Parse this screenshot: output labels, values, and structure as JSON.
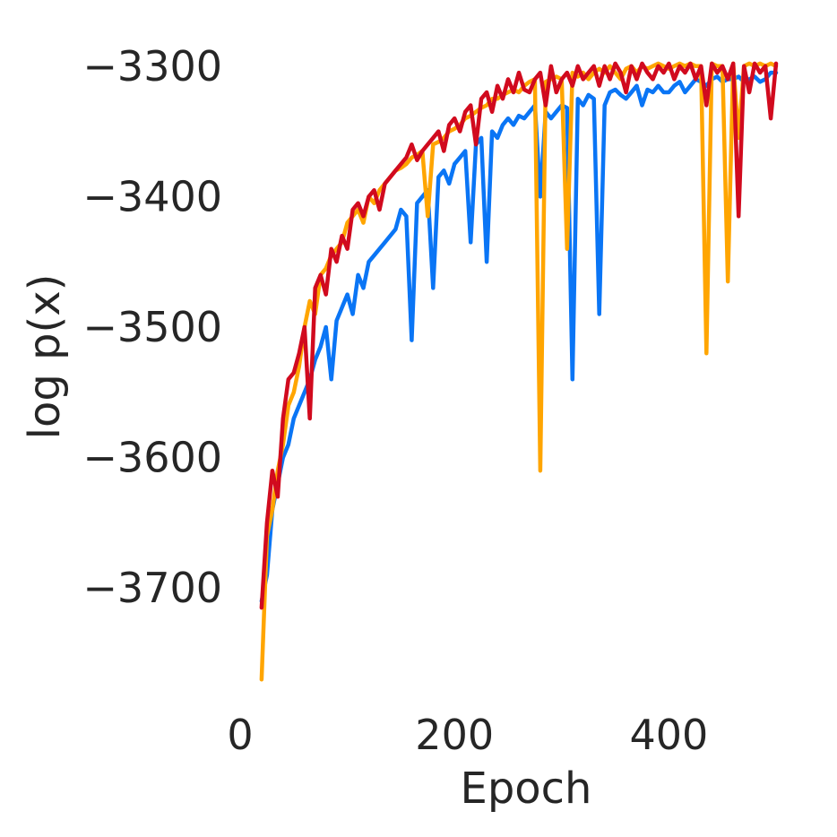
{
  "chart_data": {
    "type": "line",
    "title": "",
    "xlabel": "Epoch",
    "ylabel": "log p(x)",
    "xlim": [
      0,
      510
    ],
    "ylim": [
      -3785,
      -3285
    ],
    "xticks": [
      0,
      200,
      400
    ],
    "xtick_labels": [
      "0",
      "200",
      "400"
    ],
    "yticks": [
      -3300,
      -3400,
      -3500,
      -3600,
      -3700
    ],
    "ytick_labels": [
      "−3300",
      "−3400",
      "−3500",
      "−3600",
      "−3700"
    ],
    "grid": false,
    "legend": "none",
    "series": [
      {
        "color": "#0a75f5",
        "x": [
          20,
          25,
          30,
          35,
          40,
          45,
          50,
          55,
          60,
          65,
          70,
          75,
          80,
          85,
          90,
          95,
          100,
          105,
          110,
          115,
          120,
          125,
          130,
          135,
          140,
          145,
          150,
          155,
          160,
          165,
          170,
          175,
          180,
          185,
          190,
          195,
          200,
          205,
          210,
          215,
          220,
          225,
          230,
          235,
          240,
          245,
          250,
          255,
          260,
          265,
          270,
          275,
          280,
          285,
          290,
          295,
          300,
          305,
          310,
          315,
          320,
          325,
          330,
          335,
          340,
          345,
          350,
          355,
          360,
          365,
          370,
          375,
          380,
          385,
          390,
          395,
          400,
          405,
          410,
          415,
          420,
          425,
          430,
          435,
          440,
          445,
          450,
          455,
          460,
          465,
          470,
          475,
          480,
          485,
          490,
          495,
          500
        ],
        "y": [
          -3710,
          -3690,
          -3640,
          -3620,
          -3600,
          -3590,
          -3570,
          -3560,
          -3550,
          -3540,
          -3525,
          -3515,
          -3500,
          -3540,
          -3495,
          -3485,
          -3475,
          -3490,
          -3460,
          -3470,
          -3450,
          -3445,
          -3440,
          -3435,
          -3430,
          -3425,
          -3410,
          -3415,
          -3510,
          -3405,
          -3400,
          -3395,
          -3470,
          -3385,
          -3380,
          -3390,
          -3375,
          -3370,
          -3365,
          -3435,
          -3360,
          -3355,
          -3450,
          -3350,
          -3355,
          -3345,
          -3340,
          -3345,
          -3338,
          -3340,
          -3335,
          -3330,
          -3400,
          -3335,
          -3340,
          -3335,
          -3330,
          -3332,
          -3540,
          -3325,
          -3330,
          -3322,
          -3325,
          -3490,
          -3330,
          -3320,
          -3318,
          -3322,
          -3325,
          -3320,
          -3315,
          -3330,
          -3318,
          -3320,
          -3315,
          -3320,
          -3320,
          -3315,
          -3312,
          -3320,
          -3315,
          -3310,
          -3312,
          -3315,
          -3310,
          -3308,
          -3312,
          -3310,
          -3310,
          -3308,
          -3312,
          -3310,
          -3308,
          -3312,
          -3310,
          -3305,
          -3305
        ]
      },
      {
        "color": "#ffa500",
        "x": [
          20,
          25,
          30,
          35,
          40,
          45,
          50,
          55,
          60,
          65,
          70,
          75,
          80,
          85,
          90,
          95,
          100,
          105,
          110,
          115,
          120,
          125,
          130,
          135,
          140,
          145,
          150,
          155,
          160,
          165,
          170,
          175,
          180,
          185,
          190,
          195,
          200,
          205,
          210,
          215,
          220,
          225,
          230,
          235,
          240,
          245,
          250,
          255,
          260,
          265,
          270,
          275,
          280,
          285,
          290,
          295,
          300,
          305,
          310,
          315,
          320,
          325,
          330,
          335,
          340,
          345,
          350,
          355,
          360,
          365,
          370,
          375,
          380,
          385,
          390,
          395,
          400,
          405,
          410,
          415,
          420,
          425,
          430,
          435,
          440,
          445,
          450,
          455,
          460,
          465,
          470,
          475,
          480,
          485,
          490,
          495,
          500
        ],
        "y": [
          -3770,
          -3660,
          -3640,
          -3610,
          -3590,
          -3560,
          -3550,
          -3530,
          -3500,
          -3480,
          -3490,
          -3460,
          -3455,
          -3445,
          -3440,
          -3435,
          -3420,
          -3415,
          -3410,
          -3420,
          -3400,
          -3405,
          -3395,
          -3390,
          -3385,
          -3380,
          -3378,
          -3375,
          -3370,
          -3368,
          -3365,
          -3415,
          -3360,
          -3358,
          -3355,
          -3350,
          -3348,
          -3345,
          -3340,
          -3338,
          -3335,
          -3332,
          -3330,
          -3325,
          -3325,
          -3322,
          -3320,
          -3318,
          -3320,
          -3315,
          -3312,
          -3310,
          -3610,
          -3312,
          -3310,
          -3308,
          -3310,
          -3440,
          -3305,
          -3308,
          -3305,
          -3310,
          -3305,
          -3302,
          -3305,
          -3300,
          -3305,
          -3310,
          -3302,
          -3300,
          -3305,
          -3300,
          -3302,
          -3300,
          -3298,
          -3300,
          -3302,
          -3300,
          -3298,
          -3300,
          -3298,
          -3300,
          -3300,
          -3520,
          -3298,
          -3300,
          -3300,
          -3465,
          -3298,
          -3355,
          -3300,
          -3298,
          -3300,
          -3298,
          -3300,
          -3298,
          -3300
        ]
      },
      {
        "color": "#d10a1e",
        "x": [
          20,
          25,
          30,
          35,
          40,
          45,
          50,
          55,
          60,
          65,
          70,
          75,
          80,
          85,
          90,
          95,
          100,
          105,
          110,
          115,
          120,
          125,
          130,
          135,
          140,
          145,
          150,
          155,
          160,
          165,
          170,
          175,
          180,
          185,
          190,
          195,
          200,
          205,
          210,
          215,
          220,
          225,
          230,
          235,
          240,
          245,
          250,
          255,
          260,
          265,
          270,
          275,
          280,
          285,
          290,
          295,
          300,
          305,
          310,
          315,
          320,
          325,
          330,
          335,
          340,
          345,
          350,
          355,
          360,
          365,
          370,
          375,
          380,
          385,
          390,
          395,
          400,
          405,
          410,
          415,
          420,
          425,
          430,
          435,
          440,
          445,
          450,
          455,
          460,
          465,
          470,
          475,
          480,
          485,
          490,
          495,
          500
        ],
        "y": [
          -3715,
          -3650,
          -3610,
          -3630,
          -3570,
          -3540,
          -3535,
          -3520,
          -3500,
          -3570,
          -3470,
          -3460,
          -3475,
          -3440,
          -3450,
          -3430,
          -3440,
          -3410,
          -3405,
          -3415,
          -3400,
          -3395,
          -3410,
          -3390,
          -3385,
          -3380,
          -3375,
          -3370,
          -3360,
          -3372,
          -3365,
          -3360,
          -3355,
          -3350,
          -3365,
          -3345,
          -3340,
          -3350,
          -3335,
          -3330,
          -3360,
          -3325,
          -3320,
          -3335,
          -3315,
          -3325,
          -3310,
          -3320,
          -3305,
          -3318,
          -3320,
          -3310,
          -3305,
          -3330,
          -3300,
          -3320,
          -3310,
          -3305,
          -3315,
          -3300,
          -3310,
          -3305,
          -3300,
          -3315,
          -3300,
          -3310,
          -3298,
          -3305,
          -3320,
          -3300,
          -3310,
          -3298,
          -3305,
          -3310,
          -3300,
          -3305,
          -3298,
          -3310,
          -3300,
          -3305,
          -3298,
          -3310,
          -3300,
          -3330,
          -3298,
          -3305,
          -3300,
          -3310,
          -3298,
          -3415,
          -3300,
          -3320,
          -3298,
          -3305,
          -3300,
          -3340,
          -3298
        ]
      }
    ]
  }
}
